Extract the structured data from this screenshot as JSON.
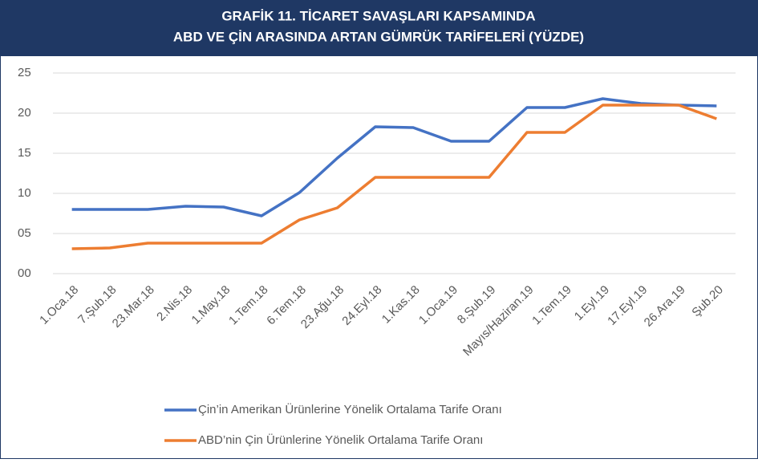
{
  "chart_data": {
    "type": "line",
    "title": [
      "GRAFİK 11. TİCARET SAVAŞLARI KAPSAMINDA",
      "ABD VE ÇİN ARASINDA ARTAN GÜMRÜK TARİFELERİ (YÜZDE)"
    ],
    "categories": [
      "1.Oca.18",
      "7.Şub.18",
      "23.Mar.18",
      "2.Nis.18",
      "1.May.18",
      "1.Tem.18",
      "6.Tem.18",
      "23.Ağu.18",
      "24.Eyl.18",
      "1.Kas.18",
      "1.Oca.19",
      "8.Şub.19",
      "Mayıs/Haziran.19",
      "1.Tem.19",
      "1.Eyl.19",
      "17.Eyl.19",
      "26.Ara.19",
      "Şub.20"
    ],
    "series": [
      {
        "name": "Çin’in Amerikan Ürünlerine Yönelik Ortalama Tarife Oranı",
        "color": "#4472c4",
        "values": [
          8.0,
          8.0,
          8.0,
          8.4,
          8.3,
          7.2,
          10.1,
          14.4,
          18.3,
          18.2,
          16.5,
          16.5,
          20.7,
          20.7,
          21.8,
          21.2,
          21.0,
          20.9
        ]
      },
      {
        "name": "ABD’nin Çin Ürünlerine Yönelik Ortalama Tarife Oranı",
        "color": "#ed7d31",
        "values": [
          3.1,
          3.2,
          3.8,
          3.8,
          3.8,
          3.8,
          6.7,
          8.2,
          12.0,
          12.0,
          12.0,
          12.0,
          17.6,
          17.6,
          21.0,
          21.0,
          21.0,
          19.3
        ]
      }
    ],
    "ylim": [
      0,
      25
    ],
    "yticks": [
      {
        "value": 0,
        "label": "00"
      },
      {
        "value": 5,
        "label": "05"
      },
      10,
      15,
      20,
      25
    ],
    "grid": true,
    "legend": "bottom"
  }
}
